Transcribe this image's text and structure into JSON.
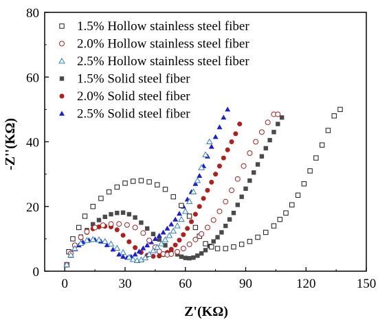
{
  "chart_data": {
    "type": "scatter",
    "xlabel": "Z'(KΩ)",
    "ylabel": "-Z''(KΩ)",
    "xlim": [
      -10,
      150
    ],
    "ylim": [
      0,
      80
    ],
    "xticks": [
      "0",
      "30",
      "60",
      "90",
      "120",
      "150"
    ],
    "yticks": [
      "0",
      "20",
      "40",
      "60",
      "80"
    ],
    "grid": false,
    "legend_position": "top-left",
    "series": [
      {
        "name": "1.5% Hollow stainless steel fiber",
        "marker": "open-square",
        "color": "#1a1a1a",
        "x": [
          1,
          2,
          4,
          7,
          10,
          14,
          18,
          22,
          26,
          30,
          34,
          38,
          42,
          46,
          50,
          54,
          58,
          62,
          65,
          67,
          70,
          73,
          76,
          80,
          84,
          88,
          92,
          96,
          100,
          104,
          107,
          110,
          113,
          116,
          119,
          122,
          125,
          128,
          131,
          134,
          137
        ],
        "y": [
          2,
          6,
          10,
          13.5,
          17,
          20,
          22.5,
          24.5,
          26,
          27.2,
          27.8,
          28,
          27.6,
          26.7,
          25.3,
          23,
          20.3,
          17,
          13.5,
          10.8,
          8.5,
          7.5,
          7,
          7,
          7.5,
          8.3,
          9.2,
          10.5,
          12,
          14,
          16,
          18,
          20.5,
          23.5,
          27,
          31,
          35,
          39,
          43.5,
          48,
          50
        ]
      },
      {
        "name": "2.0% Hollow stainless steel fiber",
        "marker": "open-circle",
        "color": "#b51c1c",
        "x": [
          1,
          3,
          5,
          8,
          11,
          15,
          19,
          23,
          27,
          31,
          35,
          39,
          42,
          45,
          47,
          49,
          51,
          53,
          56,
          59,
          62,
          65,
          68,
          71,
          74,
          77,
          80,
          83,
          86,
          89,
          92,
          95,
          98,
          101,
          104,
          106
        ],
        "y": [
          2,
          5.5,
          8,
          10.5,
          12.2,
          13.5,
          14.2,
          14.6,
          14.6,
          14.3,
          13.5,
          11.8,
          9.5,
          7.4,
          6.1,
          5.3,
          5.1,
          5.3,
          6,
          7,
          8.3,
          9.8,
          11.5,
          13.5,
          15.8,
          18.5,
          21.5,
          25,
          28.5,
          32.5,
          36.5,
          40,
          43,
          46,
          48.5,
          48.5
        ]
      },
      {
        "name": "2.5% Hollow stainless steel fiber",
        "marker": "open-triangle",
        "color": "#2a7fd4",
        "x": [
          1,
          3,
          5,
          8,
          11,
          14,
          17,
          20,
          23,
          26,
          29,
          32,
          34,
          36,
          38,
          40,
          42,
          44,
          46,
          48,
          50,
          52,
          54,
          56,
          58,
          60,
          62,
          64,
          66,
          68,
          70,
          72
        ],
        "y": [
          2,
          5,
          7,
          8.6,
          9.5,
          9.8,
          9.7,
          9.2,
          8.4,
          7.1,
          5.8,
          4.3,
          3.6,
          3.3,
          3.5,
          4.1,
          5.2,
          6.3,
          7.4,
          8.5,
          9.7,
          11,
          12.4,
          14,
          16,
          18.5,
          21.5,
          24.5,
          28,
          32,
          36,
          40
        ]
      },
      {
        "name": "1.5% Solid steel fiber",
        "marker": "filled-square",
        "color": "#4a4a4a",
        "x": [
          1,
          3,
          5,
          8,
          11,
          14,
          17,
          20,
          23,
          26,
          29,
          32,
          35,
          38,
          41,
          44,
          47,
          50,
          53,
          56,
          58,
          60,
          62,
          64,
          66,
          68,
          70,
          72,
          74,
          76,
          78,
          80,
          82,
          84,
          86,
          88,
          90,
          92,
          94,
          96,
          98,
          100,
          102,
          104,
          106,
          108
        ],
        "y": [
          2,
          5.5,
          8,
          10.7,
          12.7,
          14.5,
          15.8,
          16.8,
          17.6,
          18,
          18.1,
          17.6,
          16.6,
          15,
          13.2,
          11.5,
          9.8,
          8,
          6.5,
          5.2,
          4.5,
          4.1,
          4,
          4.2,
          4.8,
          5.5,
          6.5,
          7.8,
          9.2,
          10.5,
          12,
          14,
          16,
          18,
          20.5,
          23,
          25.5,
          28,
          30.5,
          33,
          35.5,
          38,
          40.5,
          43,
          45.5,
          47.5
        ]
      },
      {
        "name": "2.0% Solid steel fiber",
        "marker": "filled-circle",
        "color": "#b51c1c",
        "x": [
          1,
          3,
          5,
          8,
          11,
          14,
          17,
          20,
          23,
          26,
          29,
          32,
          35,
          38,
          41,
          44,
          47,
          49,
          51,
          53,
          55,
          57,
          59,
          61,
          63,
          65,
          67,
          69,
          71,
          73,
          75,
          77,
          79,
          81,
          83,
          85,
          87
        ],
        "y": [
          2,
          5,
          7.8,
          10.3,
          12,
          13.1,
          13.7,
          13.9,
          13.7,
          12.8,
          11.1,
          9.1,
          7.3,
          5.8,
          4.9,
          4.6,
          4.7,
          5.1,
          5.8,
          6.8,
          8.1,
          9.6,
          11.3,
          13.2,
          15.3,
          17.6,
          20,
          22.5,
          25,
          27.5,
          30,
          32.5,
          35,
          37.5,
          40,
          42.5,
          45.5
        ]
      },
      {
        "name": "2.5% Solid steel fiber",
        "marker": "filled-triangle",
        "color": "#1a1ae0",
        "x": [
          1,
          3,
          5,
          7,
          9,
          12,
          15,
          18,
          21,
          24,
          27,
          29,
          31,
          33,
          35,
          37,
          39,
          41,
          43,
          45,
          47,
          49,
          51,
          53,
          55,
          57,
          59,
          61,
          63,
          65,
          67,
          69,
          71,
          73,
          75,
          77,
          79,
          81
        ],
        "y": [
          2,
          4.8,
          6.8,
          8,
          9,
          9.6,
          9.7,
          9.2,
          8.1,
          6.7,
          5.2,
          4.5,
          4.2,
          4.5,
          5.2,
          6.1,
          7.1,
          8,
          9,
          10,
          11,
          12,
          13.2,
          14.5,
          16,
          17.8,
          20,
          22.2,
          24.5,
          27,
          29.5,
          32.5,
          35.5,
          38.5,
          41.5,
          44.5,
          47.5,
          50
        ]
      }
    ]
  }
}
